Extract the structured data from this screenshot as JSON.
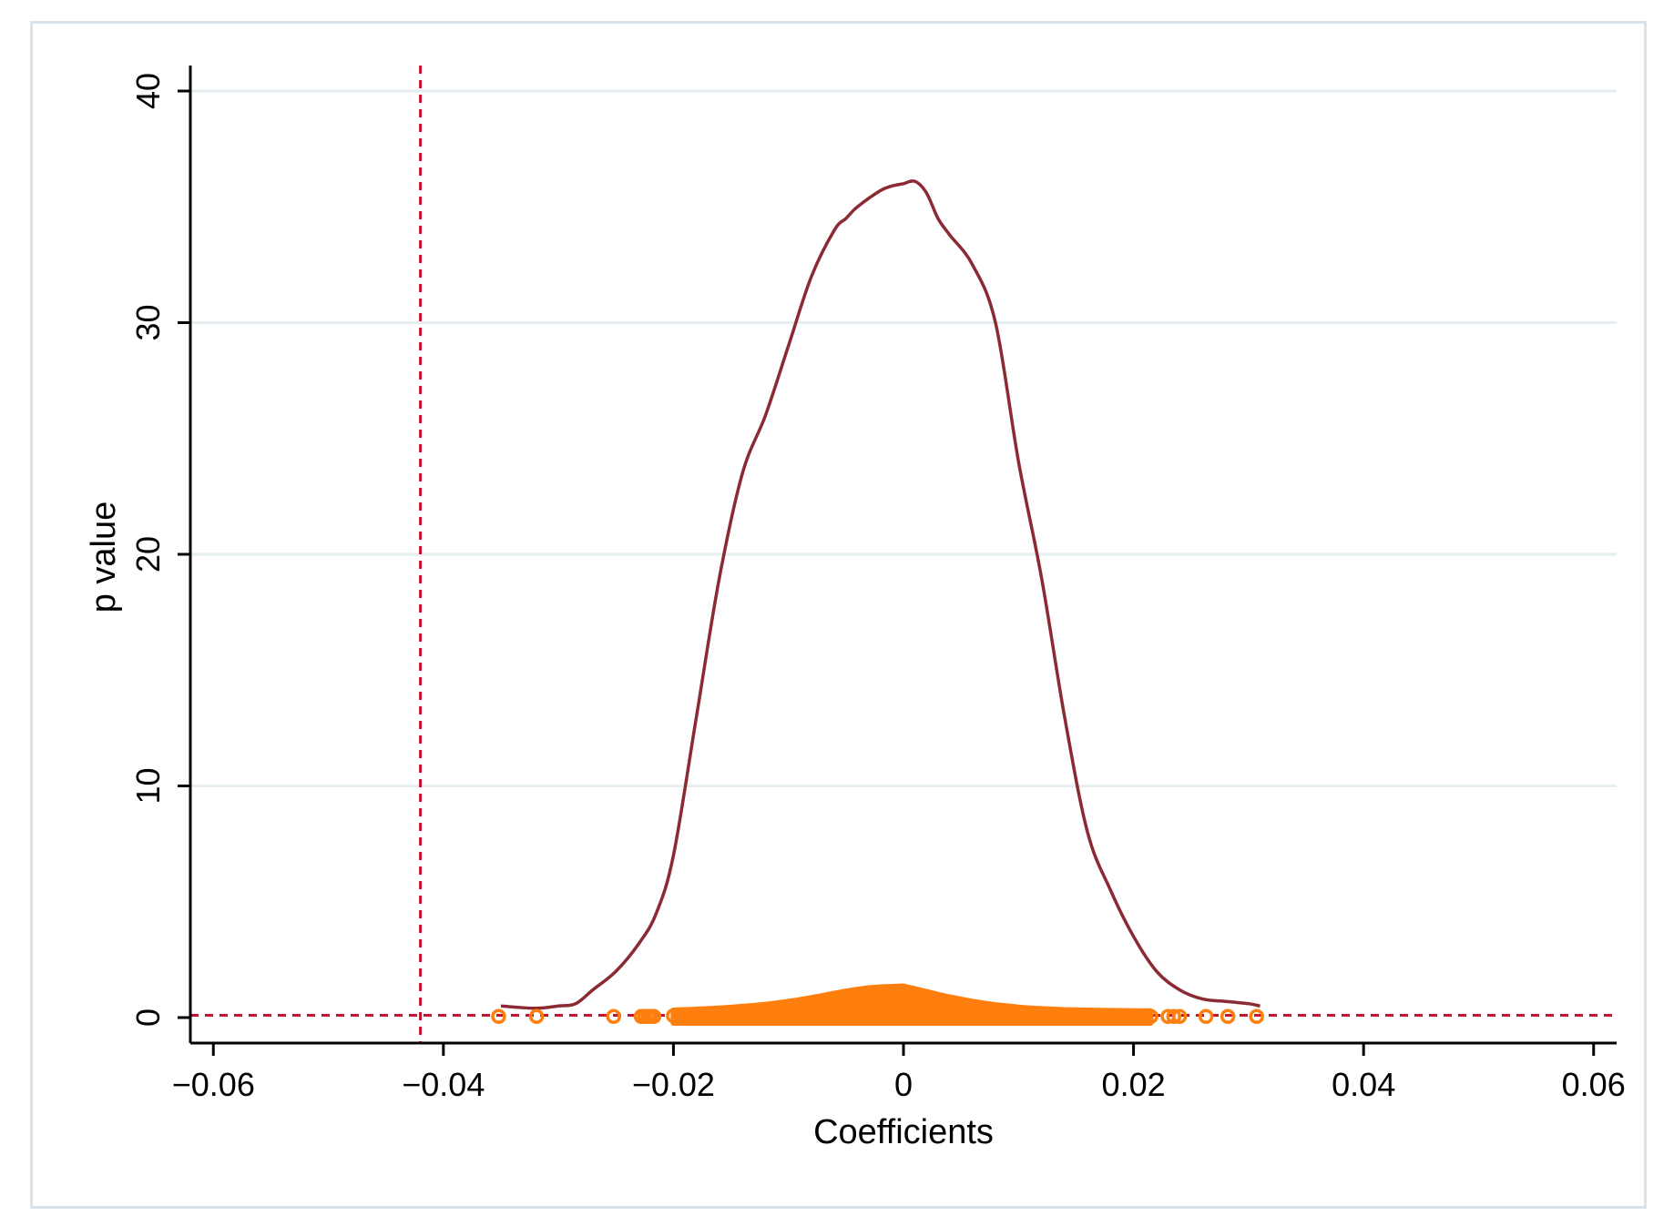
{
  "chart_data": {
    "type": "line",
    "title": "",
    "xlabel": "Coefficients",
    "ylabel": "p value",
    "xlim": [
      -0.062,
      0.062
    ],
    "ylim": [
      -1.1,
      41.1
    ],
    "x_ticks": [
      {
        "value": -0.06,
        "label": "−0.06"
      },
      {
        "value": -0.04,
        "label": "−0.04"
      },
      {
        "value": -0.02,
        "label": "−0.02"
      },
      {
        "value": 0,
        "label": "0"
      },
      {
        "value": 0.02,
        "label": "0.02"
      },
      {
        "value": 0.04,
        "label": "0.04"
      },
      {
        "value": 0.06,
        "label": "0.06"
      }
    ],
    "y_ticks": [
      {
        "value": 0,
        "label": "0"
      },
      {
        "value": 10,
        "label": "10"
      },
      {
        "value": 20,
        "label": "20"
      },
      {
        "value": 30,
        "label": "30"
      },
      {
        "value": 40,
        "label": "40"
      }
    ],
    "grid": "horizontal",
    "colors": {
      "density": "#8b2a33",
      "points": "#ff7f0e",
      "reference": "#c8102e",
      "grid": "#e6eef2",
      "frame": "#d9e4ea"
    },
    "density_curve": {
      "x": [
        -0.035,
        -0.032,
        -0.03,
        -0.0285,
        -0.027,
        -0.025,
        -0.023,
        -0.0215,
        -0.02,
        -0.018,
        -0.016,
        -0.014,
        -0.012,
        -0.01,
        -0.008,
        -0.006,
        -0.005,
        -0.004,
        -0.002,
        -0.001,
        0,
        0.001,
        0.002,
        0.003,
        0.004,
        0.006,
        0.008,
        0.01,
        0.012,
        0.014,
        0.016,
        0.018,
        0.02,
        0.022,
        0.024,
        0.026,
        0.028,
        0.03,
        0.031
      ],
      "y": [
        0.5,
        0.4,
        0.5,
        0.6,
        1.2,
        2.0,
        3.2,
        4.5,
        7.0,
        13.0,
        19.0,
        23.5,
        26.0,
        29.0,
        32.0,
        34.0,
        34.5,
        35.0,
        35.7,
        35.9,
        36.0,
        36.1,
        35.6,
        34.5,
        33.8,
        32.5,
        30.0,
        24.0,
        19.0,
        13.0,
        8.0,
        5.5,
        3.5,
        2.0,
        1.2,
        0.8,
        0.7,
        0.6,
        0.5
      ]
    },
    "observations": {
      "x": [
        -0.0352,
        -0.0319,
        -0.0252,
        -0.0228,
        -0.0225,
        -0.0222,
        -0.022,
        -0.0217,
        -0.02,
        -0.019,
        -0.018,
        -0.017,
        -0.016,
        -0.015,
        -0.014,
        -0.013,
        -0.012,
        -0.011,
        -0.01,
        -0.009,
        -0.008,
        -0.007,
        -0.006,
        -0.005,
        -0.004,
        -0.003,
        -0.002,
        -0.001,
        0,
        0.001,
        0.002,
        0.003,
        0.004,
        0.005,
        0.006,
        0.007,
        0.008,
        0.009,
        0.01,
        0.011,
        0.012,
        0.013,
        0.014,
        0.015,
        0.016,
        0.017,
        0.018,
        0.019,
        0.02,
        0.021,
        0.0215,
        0.023,
        0.0235,
        0.024,
        0.0263,
        0.0282,
        0.0307
      ],
      "y": [
        0.05,
        0.05,
        0.05,
        0.05,
        0.05,
        0.05,
        0.05,
        0.05,
        0.08,
        0.1,
        0.12,
        0.14,
        0.17,
        0.2,
        0.24,
        0.28,
        0.33,
        0.39,
        0.46,
        0.53,
        0.62,
        0.71,
        0.81,
        0.9,
        0.98,
        1.04,
        1.08,
        1.1,
        1.12,
        1.0,
        0.88,
        0.76,
        0.65,
        0.55,
        0.46,
        0.38,
        0.31,
        0.26,
        0.21,
        0.17,
        0.14,
        0.12,
        0.1,
        0.09,
        0.08,
        0.07,
        0.06,
        0.06,
        0.05,
        0.05,
        0.05,
        0.05,
        0.05,
        0.05,
        0.05,
        0.05,
        0.05
      ]
    },
    "reference_lines": {
      "vertical_x": -0.042,
      "horizontal_y": 0.1
    }
  }
}
